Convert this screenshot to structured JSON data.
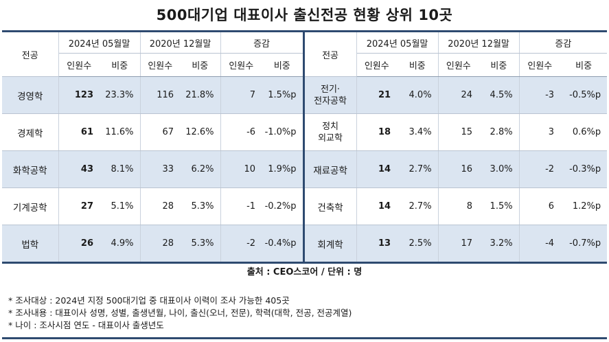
{
  "title": "500대기업 대표이사 출신전공 현황 상위 10곳",
  "header": {
    "major": "전공",
    "period1": "2024년 05월말",
    "period2": "2020년 12월말",
    "change": "증감",
    "count": "인원수",
    "ratio": "비중"
  },
  "left_rows": [
    {
      "major": "경영학",
      "c24": "123",
      "r24": "23.3%",
      "c20": "116",
      "r20": "21.8%",
      "dc": "7",
      "dr": "1.5%p"
    },
    {
      "major": "경제학",
      "c24": "61",
      "r24": "11.6%",
      "c20": "67",
      "r20": "12.6%",
      "dc": "-6",
      "dr": "-1.0%p"
    },
    {
      "major": "화학공학",
      "c24": "43",
      "r24": "8.1%",
      "c20": "33",
      "r20": "6.2%",
      "dc": "10",
      "dr": "1.9%p"
    },
    {
      "major": "기계공학",
      "c24": "27",
      "r24": "5.1%",
      "c20": "28",
      "r20": "5.3%",
      "dc": "-1",
      "dr": "-0.2%p"
    },
    {
      "major": "법학",
      "c24": "26",
      "r24": "4.9%",
      "c20": "28",
      "r20": "5.3%",
      "dc": "-2",
      "dr": "-0.4%p"
    }
  ],
  "right_rows": [
    {
      "major_line1": "전기·",
      "major_line2": "전자공학",
      "c24": "21",
      "r24": "4.0%",
      "c20": "24",
      "r20": "4.5%",
      "dc": "-3",
      "dr": "-0.5%p"
    },
    {
      "major_line1": "정치",
      "major_line2": "외교학",
      "c24": "18",
      "r24": "3.4%",
      "c20": "15",
      "r20": "2.8%",
      "dc": "3",
      "dr": "0.6%p"
    },
    {
      "major_line1": "재료공학",
      "major_line2": "",
      "c24": "14",
      "r24": "2.7%",
      "c20": "16",
      "r20": "3.0%",
      "dc": "-2",
      "dr": "-0.3%p"
    },
    {
      "major_line1": "건축학",
      "major_line2": "",
      "c24": "14",
      "r24": "2.7%",
      "c20": "8",
      "r20": "1.5%",
      "dc": "6",
      "dr": "1.2%p"
    },
    {
      "major_line1": "회계학",
      "major_line2": "",
      "c24": "13",
      "r24": "2.5%",
      "c20": "17",
      "r20": "3.2%",
      "dc": "-4",
      "dr": "-0.7%p"
    }
  ],
  "source": "출처 : CEO스코어 / 단위 : 명",
  "notes": [
    "* 조사대상 : 2024년 지정 500대기업 중 대표이사 이력이 조사 가능한 405곳",
    "* 조사내용 : 대표이사 성명, 성별, 출생년월, 나이, 출신(오너, 전문), 학력(대학, 전공, 전공계열)",
    "* 나이 : 조사시점 연도 - 대표이사 출생년도"
  ],
  "colors": {
    "accent": "#2e4a70",
    "shade": "#dbe5f1"
  }
}
